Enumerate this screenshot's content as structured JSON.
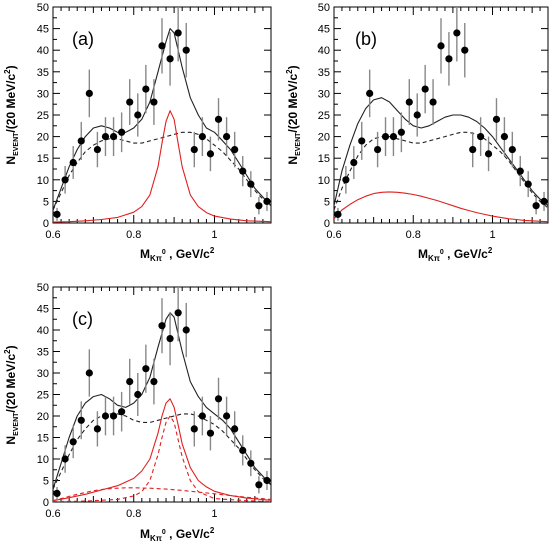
{
  "colors": {
    "points": "#000000",
    "total_fit": "#222222",
    "background_fit": "#222222",
    "signal": "#e02020"
  },
  "chart_data": [
    {
      "type": "scatter",
      "panel_label": "(a)",
      "xlabel_main": "M",
      "xlabel_sub": "Kπ",
      "xlabel_sup": "0",
      "xlabel_units": " , GeV/c",
      "xlabel_units_sup": "2",
      "ylabel_main": "N",
      "ylabel_sub": "EVENT",
      "ylabel_units": "/(20 MeV/c",
      "ylabel_units_sup": "2",
      "ylabel_close": ")",
      "xlim": [
        0.6,
        1.14
      ],
      "ylim": [
        0,
        50
      ],
      "x_ticks": [
        "0.6",
        "0.8",
        "1"
      ],
      "y_ticks": [
        "0",
        "5",
        "10",
        "15",
        "20",
        "25",
        "30",
        "35",
        "40",
        "45",
        "50"
      ],
      "series": [
        {
          "x": [
            0.61,
            0.63,
            0.65,
            0.67,
            0.69,
            0.71,
            0.73,
            0.75,
            0.77,
            0.79,
            0.81,
            0.83,
            0.85,
            0.87,
            0.89,
            0.91,
            0.93,
            0.95,
            0.97,
            0.99,
            1.01,
            1.03,
            1.05,
            1.07,
            1.09,
            1.11,
            1.13
          ],
          "y": [
            2,
            10,
            14,
            19,
            30,
            17,
            20,
            20,
            21,
            28,
            25,
            31,
            28,
            41,
            38,
            44,
            40,
            17,
            20,
            16,
            24,
            20,
            17,
            12,
            9,
            4,
            5
          ],
          "yerr": [
            1.5,
            3.2,
            3.8,
            4.4,
            5.5,
            4.1,
            4.5,
            4.5,
            4.6,
            5.3,
            5.0,
            5.6,
            5.3,
            6.4,
            6.2,
            6.6,
            6.3,
            4.1,
            4.5,
            4.0,
            4.9,
            4.5,
            4.1,
            3.5,
            3.0,
            2.0,
            2.2
          ]
        }
      ],
      "curves": [
        {
          "role": "total",
          "style": "solid",
          "x": [
            0.6,
            0.62,
            0.64,
            0.66,
            0.68,
            0.7,
            0.72,
            0.74,
            0.76,
            0.78,
            0.8,
            0.82,
            0.84,
            0.86,
            0.88,
            0.89,
            0.9,
            0.92,
            0.94,
            0.96,
            0.98,
            1.0,
            1.02,
            1.04,
            1.06,
            1.08,
            1.1,
            1.12,
            1.14
          ],
          "y": [
            3,
            8,
            13,
            17,
            20,
            22,
            22.5,
            22,
            21,
            21,
            22,
            24,
            28,
            35,
            42,
            45,
            44,
            36,
            29,
            25,
            22,
            21,
            19,
            17,
            14,
            11,
            8,
            6,
            4
          ]
        },
        {
          "role": "background",
          "style": "dashed",
          "x": [
            0.6,
            0.62,
            0.64,
            0.66,
            0.68,
            0.7,
            0.72,
            0.74,
            0.76,
            0.78,
            0.8,
            0.82,
            0.84,
            0.86,
            0.88,
            0.9,
            0.92,
            0.94,
            0.96,
            0.98,
            1.0,
            1.02,
            1.04,
            1.06,
            1.08,
            1.1,
            1.12,
            1.14
          ],
          "y": [
            3,
            7,
            11,
            14,
            16.5,
            18,
            19,
            19.5,
            19.5,
            19,
            18.5,
            18.5,
            19,
            19.5,
            20,
            20.5,
            21,
            21,
            20.5,
            19.5,
            18,
            16.5,
            14.5,
            12.5,
            10,
            7.5,
            5.5,
            4
          ]
        },
        {
          "role": "signal",
          "style": "solid",
          "x": [
            0.6,
            0.64,
            0.68,
            0.72,
            0.76,
            0.8,
            0.82,
            0.84,
            0.86,
            0.87,
            0.88,
            0.89,
            0.9,
            0.91,
            0.92,
            0.94,
            0.96,
            0.98,
            1.0,
            1.04,
            1.08,
            1.14
          ],
          "y": [
            0.2,
            0.3,
            0.5,
            0.8,
            1.3,
            2.5,
            3.8,
            6.5,
            13,
            18.5,
            23.5,
            26,
            24,
            18.5,
            13,
            6.5,
            3.8,
            2.4,
            1.6,
            0.9,
            0.5,
            0.3
          ]
        }
      ]
    },
    {
      "type": "scatter",
      "panel_label": "(b)",
      "xlabel_main": "M",
      "xlabel_sub": "Kπ",
      "xlabel_sup": "0",
      "xlabel_units": " , GeV/c",
      "xlabel_units_sup": "2",
      "ylabel_main": "N",
      "ylabel_sub": "EVENT",
      "ylabel_units": "/(20 MeV/c",
      "ylabel_units_sup": "2",
      "ylabel_close": ")",
      "xlim": [
        0.6,
        1.14
      ],
      "ylim": [
        0,
        50
      ],
      "x_ticks": [
        "0.6",
        "0.8",
        "1"
      ],
      "y_ticks": [
        "0",
        "5",
        "10",
        "15",
        "20",
        "25",
        "30",
        "35",
        "40",
        "45",
        "50"
      ],
      "series": [
        {
          "x": [
            0.61,
            0.63,
            0.65,
            0.67,
            0.69,
            0.71,
            0.73,
            0.75,
            0.77,
            0.79,
            0.81,
            0.83,
            0.85,
            0.87,
            0.89,
            0.91,
            0.93,
            0.95,
            0.97,
            0.99,
            1.01,
            1.03,
            1.05,
            1.07,
            1.09,
            1.11,
            1.13
          ],
          "y": [
            2,
            10,
            14,
            19,
            30,
            17,
            20,
            20,
            21,
            28,
            25,
            31,
            28,
            41,
            38,
            44,
            40,
            17,
            20,
            16,
            24,
            20,
            17,
            12,
            9,
            4,
            5
          ],
          "yerr": [
            1.5,
            3.2,
            3.8,
            4.4,
            5.5,
            4.1,
            4.5,
            4.5,
            4.6,
            5.3,
            5.0,
            5.6,
            5.3,
            6.4,
            6.2,
            6.6,
            6.3,
            4.1,
            4.5,
            4.0,
            4.9,
            4.5,
            4.1,
            3.5,
            3.0,
            2.0,
            2.2
          ]
        }
      ],
      "curves": [
        {
          "role": "total",
          "style": "solid",
          "x": [
            0.6,
            0.62,
            0.64,
            0.66,
            0.68,
            0.7,
            0.72,
            0.74,
            0.76,
            0.78,
            0.8,
            0.82,
            0.84,
            0.86,
            0.88,
            0.9,
            0.92,
            0.94,
            0.96,
            0.98,
            1.0,
            1.02,
            1.04,
            1.06,
            1.08,
            1.1,
            1.12,
            1.14
          ],
          "y": [
            4,
            12,
            18,
            23,
            26.5,
            28.5,
            29,
            28,
            26,
            24,
            22.5,
            22,
            22.5,
            23.5,
            24.5,
            25,
            25,
            24.5,
            23.5,
            22,
            20,
            17.5,
            15,
            12.5,
            10,
            7.5,
            5.5,
            4
          ]
        },
        {
          "role": "background",
          "style": "dashed",
          "x": [
            0.6,
            0.62,
            0.64,
            0.66,
            0.68,
            0.7,
            0.72,
            0.74,
            0.76,
            0.78,
            0.8,
            0.82,
            0.84,
            0.86,
            0.88,
            0.9,
            0.92,
            0.94,
            0.96,
            0.98,
            1.0,
            1.02,
            1.04,
            1.06,
            1.08,
            1.1,
            1.12,
            1.14
          ],
          "y": [
            3,
            8,
            12,
            15.5,
            18,
            19.5,
            20,
            20,
            19.5,
            19,
            18.5,
            18.5,
            19,
            19.5,
            20,
            20.5,
            21,
            21,
            20.5,
            19.5,
            18,
            16.5,
            14.5,
            12,
            9.5,
            7,
            5,
            3.5
          ]
        },
        {
          "role": "signal",
          "style": "solid",
          "x": [
            0.6,
            0.62,
            0.64,
            0.66,
            0.68,
            0.7,
            0.72,
            0.74,
            0.76,
            0.78,
            0.8,
            0.82,
            0.84,
            0.86,
            0.88,
            0.9,
            0.92,
            0.94,
            0.96,
            0.98,
            1.0,
            1.02,
            1.04,
            1.06,
            1.08,
            1.1,
            1.12,
            1.14
          ],
          "y": [
            1,
            3,
            4.3,
            5.4,
            6.2,
            6.8,
            7.1,
            7.2,
            7.1,
            6.9,
            6.6,
            6.2,
            5.7,
            5.2,
            4.6,
            4.0,
            3.4,
            2.9,
            2.4,
            2.0,
            1.6,
            1.3,
            1.0,
            0.8,
            0.6,
            0.5,
            0.4,
            0.3
          ]
        }
      ]
    },
    {
      "type": "scatter",
      "panel_label": "(c)",
      "xlabel_main": "M",
      "xlabel_sub": "Kπ",
      "xlabel_sup": "0",
      "xlabel_units": " , GeV/c",
      "xlabel_units_sup": "2",
      "ylabel_main": "N",
      "ylabel_sub": "EVENT",
      "ylabel_units": "/(20 MeV/c",
      "ylabel_units_sup": "2",
      "ylabel_close": ")",
      "xlim": [
        0.6,
        1.14
      ],
      "ylim": [
        0,
        50
      ],
      "x_ticks": [
        "0.6",
        "0.8",
        "1"
      ],
      "y_ticks": [
        "0",
        "5",
        "10",
        "15",
        "20",
        "25",
        "30",
        "35",
        "40",
        "45",
        "50"
      ],
      "series": [
        {
          "x": [
            0.61,
            0.63,
            0.65,
            0.67,
            0.69,
            0.71,
            0.73,
            0.75,
            0.77,
            0.79,
            0.81,
            0.83,
            0.85,
            0.87,
            0.89,
            0.91,
            0.93,
            0.95,
            0.97,
            0.99,
            1.01,
            1.03,
            1.05,
            1.07,
            1.09,
            1.11,
            1.13
          ],
          "y": [
            2,
            10,
            14,
            19,
            30,
            17,
            20,
            20,
            21,
            28,
            25,
            31,
            28,
            41,
            38,
            44,
            40,
            17,
            20,
            16,
            24,
            20,
            17,
            12,
            9,
            4,
            5
          ],
          "yerr": [
            1.5,
            3.2,
            3.8,
            4.4,
            5.5,
            4.1,
            4.5,
            4.5,
            4.6,
            5.3,
            5.0,
            5.6,
            5.3,
            6.4,
            6.2,
            6.6,
            6.3,
            4.1,
            4.5,
            4.0,
            4.9,
            4.5,
            4.1,
            3.5,
            3.0,
            2.0,
            2.2
          ]
        }
      ],
      "curves": [
        {
          "role": "total",
          "style": "solid",
          "x": [
            0.6,
            0.62,
            0.64,
            0.66,
            0.68,
            0.7,
            0.72,
            0.74,
            0.76,
            0.78,
            0.8,
            0.82,
            0.84,
            0.86,
            0.88,
            0.89,
            0.9,
            0.92,
            0.94,
            0.96,
            0.98,
            1.0,
            1.02,
            1.04,
            1.06,
            1.08,
            1.1,
            1.12,
            1.14
          ],
          "y": [
            3,
            9,
            15,
            20,
            23,
            24.5,
            25,
            24,
            22.5,
            22,
            23,
            25,
            29,
            36,
            42.5,
            44,
            43,
            35,
            28,
            24.5,
            22,
            20.5,
            19,
            17,
            14,
            11,
            8,
            6,
            4
          ]
        },
        {
          "role": "background",
          "style": "dashed",
          "x": [
            0.6,
            0.62,
            0.64,
            0.66,
            0.68,
            0.7,
            0.72,
            0.74,
            0.76,
            0.78,
            0.8,
            0.82,
            0.84,
            0.86,
            0.88,
            0.9,
            0.92,
            0.94,
            0.96,
            0.98,
            1.0,
            1.02,
            1.04,
            1.06,
            1.08,
            1.1,
            1.12,
            1.14
          ],
          "y": [
            3,
            7,
            11,
            14.5,
            17,
            19,
            20,
            20.5,
            20.5,
            20,
            19,
            18.5,
            18.5,
            19,
            19.5,
            20,
            20.5,
            20.5,
            20,
            19,
            18,
            16.5,
            14.5,
            12.5,
            10,
            7.5,
            5.5,
            4
          ]
        },
        {
          "role": "signal",
          "style": "solid",
          "x": [
            0.6,
            0.64,
            0.68,
            0.72,
            0.76,
            0.8,
            0.82,
            0.84,
            0.86,
            0.87,
            0.88,
            0.89,
            0.9,
            0.91,
            0.92,
            0.94,
            0.96,
            0.98,
            1.0,
            1.04,
            1.08,
            1.14
          ],
          "y": [
            0.3,
            1.0,
            1.8,
            2.8,
            3.8,
            5.5,
            7.2,
            10,
            16,
            20,
            23,
            24,
            22,
            18,
            13.5,
            8,
            5,
            3.5,
            2.5,
            1.5,
            0.9,
            0.4
          ]
        },
        {
          "role": "signal-narrow",
          "style": "dashed",
          "x": [
            0.6,
            0.68,
            0.76,
            0.8,
            0.82,
            0.84,
            0.86,
            0.87,
            0.88,
            0.89,
            0.9,
            0.91,
            0.92,
            0.94,
            0.96,
            1.0,
            1.08,
            1.14
          ],
          "y": [
            0.1,
            0.2,
            0.6,
            1.4,
            2.4,
            5,
            11,
            15,
            18.5,
            20,
            18.5,
            14.5,
            10.5,
            5,
            2.4,
            0.8,
            0.3,
            0.1
          ]
        },
        {
          "role": "signal-broad",
          "style": "dashed",
          "x": [
            0.6,
            0.62,
            0.64,
            0.66,
            0.68,
            0.7,
            0.72,
            0.74,
            0.76,
            0.78,
            0.8,
            0.84,
            0.88,
            0.92,
            0.96,
            1.0,
            1.04,
            1.08,
            1.14
          ],
          "y": [
            0.3,
            0.8,
            1.3,
            1.8,
            2.2,
            2.6,
            2.9,
            3.1,
            3.2,
            3.3,
            3.3,
            3.2,
            3.0,
            2.7,
            2.3,
            1.9,
            1.5,
            1.1,
            0.6
          ]
        }
      ]
    }
  ]
}
